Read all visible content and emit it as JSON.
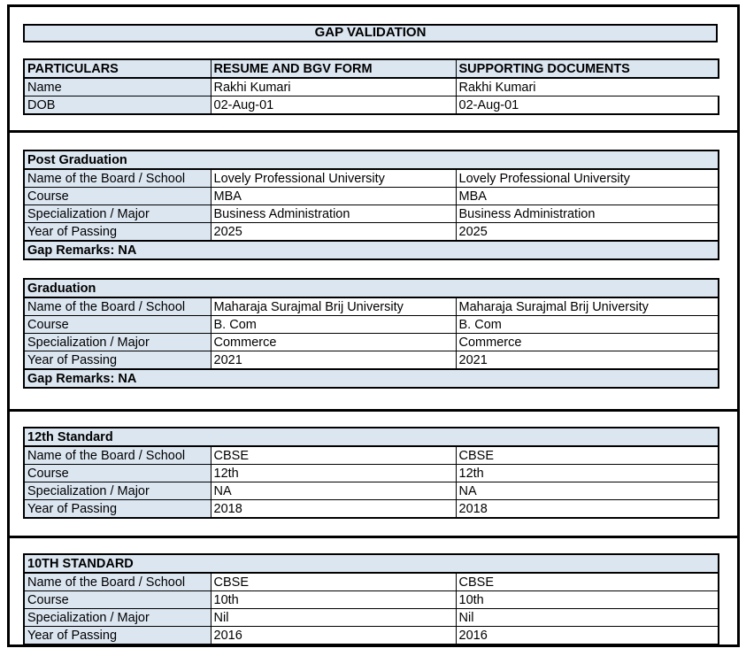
{
  "title": "GAP VALIDATION",
  "columns": [
    "PARTICULARS",
    "RESUME AND BGV FORM",
    "SUPPORTING DOCUMENTS"
  ],
  "particulars": {
    "rows": [
      {
        "label": "Name",
        "resume": "Rakhi Kumari",
        "supporting": "Rakhi Kumari"
      },
      {
        "label": "DOB",
        "resume": "02-Aug-01",
        "supporting": "02-Aug-01"
      }
    ]
  },
  "sections": [
    {
      "title": "Post Graduation",
      "rows": [
        {
          "label": "Name of the Board / School",
          "resume": "Lovely Professional University",
          "supporting": "Lovely Professional University"
        },
        {
          "label": "Course",
          "resume": "MBA",
          "supporting": "MBA"
        },
        {
          "label": "Specialization / Major",
          "resume": "Business Administration",
          "supporting": "Business Administration"
        },
        {
          "label": "Year of Passing",
          "resume": "2025",
          "supporting": "2025"
        }
      ],
      "gap_remarks": "Gap Remarks: NA"
    },
    {
      "title": "Graduation",
      "rows": [
        {
          "label": "Name of the Board / School",
          "resume": "Maharaja Surajmal Brij University",
          "supporting": "Maharaja Surajmal Brij University"
        },
        {
          "label": "Course",
          "resume": "B. Com",
          "supporting": "B. Com"
        },
        {
          "label": "Specialization / Major",
          "resume": "Commerce",
          "supporting": "Commerce"
        },
        {
          "label": "Year of Passing",
          "resume": "2021",
          "supporting": "2021"
        }
      ],
      "gap_remarks": "Gap Remarks: NA"
    },
    {
      "title": "12th Standard",
      "rows": [
        {
          "label": "Name of the Board / School",
          "resume": "CBSE",
          "supporting": "CBSE"
        },
        {
          "label": "Course",
          "resume": "12th",
          "supporting": "12th"
        },
        {
          "label": "Specialization / Major",
          "resume": "NA",
          "supporting": "NA"
        },
        {
          "label": "Year of Passing",
          "resume": "2018",
          "supporting": "2018"
        }
      ]
    },
    {
      "title": "10TH STANDARD",
      "rows": [
        {
          "label": "Name of the Board / School",
          "resume": "CBSE",
          "supporting": "CBSE"
        },
        {
          "label": "Course",
          "resume": "10th",
          "supporting": "10th"
        },
        {
          "label": "Specialization / Major",
          "resume": "Nil",
          "supporting": "Nil"
        },
        {
          "label": "Year of Passing",
          "resume": "2016",
          "supporting": "2016"
        }
      ]
    }
  ],
  "colors": {
    "header_fill": "#dce6f1",
    "border": "#000000",
    "background": "#ffffff",
    "text": "#000000"
  }
}
